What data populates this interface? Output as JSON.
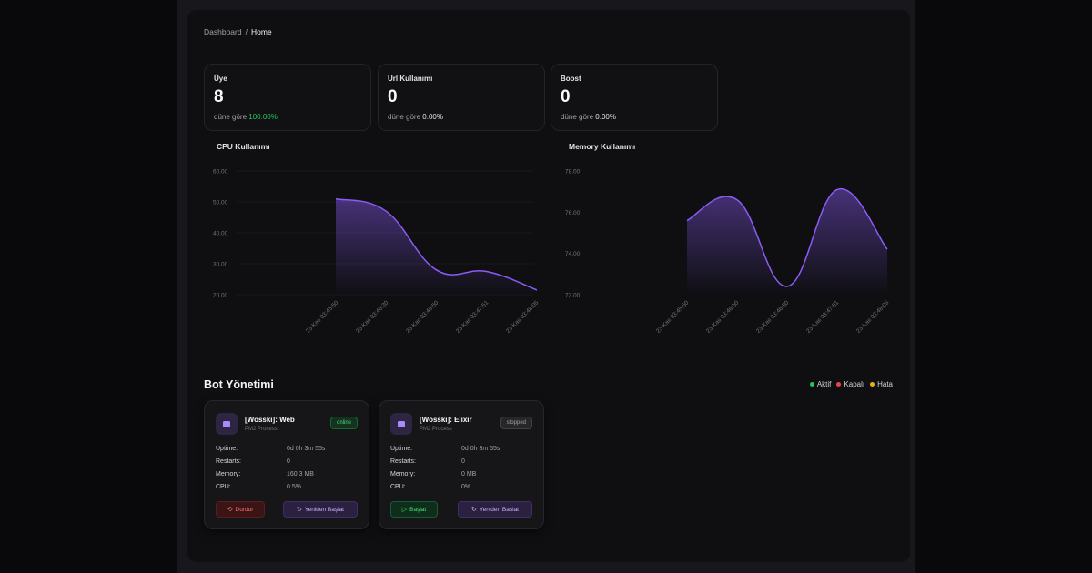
{
  "breadcrumb": {
    "parent": "Dashboard",
    "separator": "/",
    "current": "Home"
  },
  "stats": [
    {
      "title": "Üye",
      "value": "8",
      "sub_prefix": "düne göre",
      "change": "100.00%",
      "positive": true
    },
    {
      "title": "Url Kullanımı",
      "value": "0",
      "sub_prefix": "düne göre",
      "change": "0.00%",
      "positive": false
    },
    {
      "title": "Boost",
      "value": "0",
      "sub_prefix": "düne göre",
      "change": "0.00%",
      "positive": false
    }
  ],
  "charts": {
    "cpu_title": "CPU Kullanımı",
    "memory_title": "Memory Kullanımı"
  },
  "chart_data": [
    {
      "type": "area",
      "title": "CPU Kullanımı",
      "x": [
        "23 Kas 03:45:50",
        "23 Kas 03:46:30",
        "23 Kas 03:46:50",
        "23 Kas 03:47:51",
        "23 Kas 03:48:05"
      ],
      "series": [
        {
          "values": [
            51,
            47,
            28,
            27.5,
            21.5
          ]
        }
      ],
      "y_ticks": [
        "60.00",
        "50.00",
        "40.00",
        "30.00",
        "20.00"
      ],
      "ylim": [
        20,
        60
      ],
      "color": "#8b5cf6"
    },
    {
      "type": "area",
      "title": "Memory Kullanımı",
      "x": [
        "23 Kas 03:45:50",
        "23 Kas 03:46:50",
        "23 Kas 03:46:50",
        "23 Kas 03:47:51",
        "23 Kas 03:48:05"
      ],
      "series": [
        {
          "values": [
            75.6,
            76.6,
            72.4,
            77.1,
            74.2
          ]
        }
      ],
      "y_ticks": [
        "78.00",
        "76.00",
        "74.00",
        "72.00"
      ],
      "ylim": [
        72,
        78
      ],
      "color": "#8b5cf6"
    }
  ],
  "bots_section": {
    "title": "Bot Yönetimi",
    "legend": [
      {
        "label": "Aktif",
        "color": "#22c55e"
      },
      {
        "label": "Kapalı",
        "color": "#ef4444"
      },
      {
        "label": "Hata",
        "color": "#eab308"
      }
    ]
  },
  "bots": [
    {
      "name": "[Wosski]: Web",
      "type": "PM2 Process",
      "status": "online",
      "rows": [
        {
          "k": "Uptime:",
          "v": "0d 0h 3m 55s"
        },
        {
          "k": "Restarts:",
          "v": "0"
        },
        {
          "k": "Memory:",
          "v": "160.3 MB"
        },
        {
          "k": "CPU:",
          "v": "0.5%"
        }
      ],
      "primary_label": "Durdur",
      "restart_label": "Yeniden Başlat"
    },
    {
      "name": "[Wosski]: Elixir",
      "type": "PM2 Process",
      "status": "stopped",
      "rows": [
        {
          "k": "Uptime:",
          "v": "0d 0h 3m 55s"
        },
        {
          "k": "Restarts:",
          "v": "0"
        },
        {
          "k": "Memory:",
          "v": "0 MB"
        },
        {
          "k": "CPU:",
          "v": "0%"
        }
      ],
      "primary_label": "Başlat",
      "restart_label": "Yeniden Başlat"
    }
  ]
}
